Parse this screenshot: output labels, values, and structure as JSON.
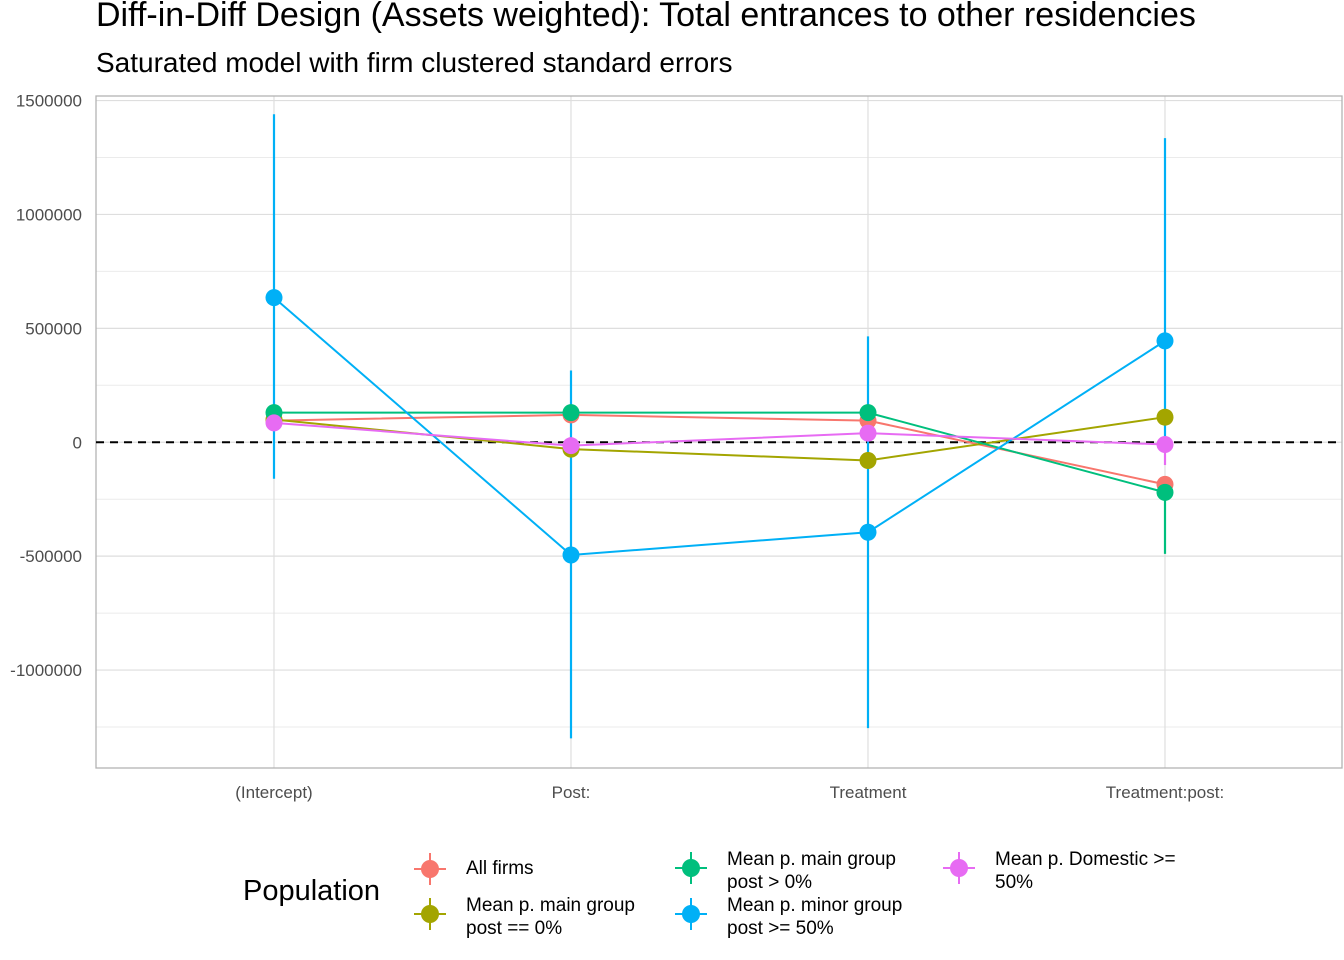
{
  "chart_data": {
    "type": "line",
    "title": "Diff-in-Diff Design (Assets weighted): Total entrances to other residencies",
    "subtitle": "Saturated model with firm clustered standard errors",
    "categories": [
      "(Intercept)",
      "Post:",
      "Treatment",
      "Treatment:post:"
    ],
    "ylim": [
      -1430000,
      1520000
    ],
    "yticks": [
      1500000,
      1000000,
      500000,
      0,
      -500000,
      -1000000
    ],
    "ytick_labels": [
      "1500000",
      "1000000",
      "500000",
      "0",
      "-500000",
      "-1000000"
    ],
    "reference_line": 0,
    "grid": true,
    "legend": {
      "title": "Population",
      "position": "bottom"
    },
    "series": [
      {
        "name": "All firms",
        "color": "#F8766D",
        "values": [
          95000,
          120000,
          95000,
          -185000
        ],
        "lower": [
          null,
          null,
          null,
          null
        ],
        "upper": [
          null,
          null,
          null,
          null
        ]
      },
      {
        "name": "Mean p. main group\npost == 0%",
        "color": "#A3A500",
        "values": [
          100000,
          -30000,
          -80000,
          110000
        ],
        "lower": [
          null,
          null,
          null,
          null
        ],
        "upper": [
          null,
          null,
          null,
          null
        ]
      },
      {
        "name": "Mean p. main group\npost > 0%",
        "color": "#00BF7D",
        "values": [
          130000,
          130000,
          130000,
          -220000
        ],
        "lower": [
          null,
          null,
          null,
          -490000
        ],
        "upper": [
          null,
          null,
          null,
          null
        ]
      },
      {
        "name": "Mean p. minor group\npost >= 50%",
        "color": "#00B0F6",
        "values": [
          635000,
          -495000,
          -395000,
          445000
        ],
        "lower": [
          -160000,
          -1300000,
          -1255000,
          -20000
        ],
        "upper": [
          1440000,
          315000,
          465000,
          1335000
        ]
      },
      {
        "name": "Mean p. Domestic >=\n50%",
        "color": "#E76BF3",
        "values": [
          85000,
          -15000,
          40000,
          -10000
        ],
        "lower": [
          null,
          null,
          null,
          -100000
        ],
        "upper": [
          null,
          null,
          null,
          null
        ]
      }
    ]
  }
}
